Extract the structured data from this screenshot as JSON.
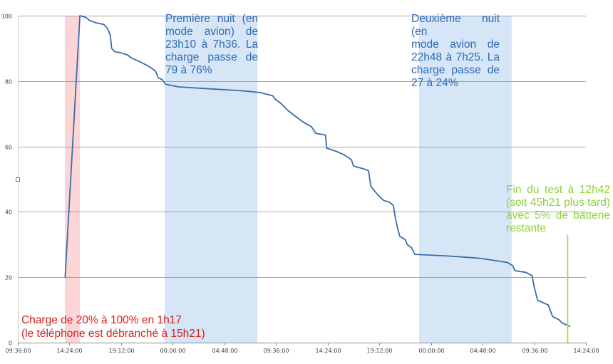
{
  "chart_data": {
    "type": "line",
    "title": "",
    "xlabel": "",
    "ylabel": "",
    "x_unit": "hours",
    "xlim": [
      0,
      52.8
    ],
    "ylim": [
      0,
      100
    ],
    "x_ticks": [
      {
        "x": 0,
        "label": "09:36:00"
      },
      {
        "x": 4.8,
        "label": "14:24:00"
      },
      {
        "x": 9.6,
        "label": "19:12:00"
      },
      {
        "x": 14.4,
        "label": "00:00:00"
      },
      {
        "x": 19.2,
        "label": "04:48:00"
      },
      {
        "x": 24.0,
        "label": "09:36:00"
      },
      {
        "x": 28.8,
        "label": "14:24:00"
      },
      {
        "x": 33.6,
        "label": "19:12:00"
      },
      {
        "x": 38.4,
        "label": "00:00:00"
      },
      {
        "x": 43.2,
        "label": "04:48:00"
      },
      {
        "x": 48.0,
        "label": "09:36:00"
      },
      {
        "x": 52.8,
        "label": "14:24:00"
      }
    ],
    "y_ticks": [
      0,
      20,
      40,
      60,
      80,
      100
    ],
    "grid": true,
    "legend": "none",
    "series": [
      {
        "color": "#3a6da8",
        "points": [
          [
            4.4,
            20
          ],
          [
            5.77,
            100
          ],
          [
            6.3,
            99.5
          ],
          [
            6.7,
            98.5
          ],
          [
            7.3,
            97.8
          ],
          [
            8.0,
            97.3
          ],
          [
            8.35,
            96
          ],
          [
            8.6,
            94
          ],
          [
            8.72,
            90
          ],
          [
            9.0,
            89
          ],
          [
            9.6,
            88.6
          ],
          [
            10.2,
            88
          ],
          [
            10.6,
            87
          ],
          [
            11.3,
            86
          ],
          [
            11.9,
            85
          ],
          [
            12.4,
            84
          ],
          [
            12.8,
            83
          ],
          [
            13.05,
            81
          ],
          [
            13.4,
            80.5
          ],
          [
            13.75,
            79
          ],
          [
            15.0,
            78.2
          ],
          [
            18.0,
            77.6
          ],
          [
            21.0,
            77
          ],
          [
            22.5,
            76.5
          ],
          [
            23.7,
            75.5
          ],
          [
            23.9,
            74.5
          ],
          [
            24.5,
            73
          ],
          [
            25.1,
            71
          ],
          [
            25.7,
            69.5
          ],
          [
            26.5,
            67.5
          ],
          [
            27.3,
            66
          ],
          [
            27.7,
            64
          ],
          [
            28.6,
            63.5
          ],
          [
            28.7,
            59.5
          ],
          [
            29.6,
            58.5
          ],
          [
            30.3,
            57.5
          ],
          [
            31.0,
            56
          ],
          [
            31.2,
            54
          ],
          [
            32.3,
            53
          ],
          [
            32.6,
            52.5
          ],
          [
            32.8,
            48
          ],
          [
            33.0,
            47
          ],
          [
            33.5,
            45
          ],
          [
            34.0,
            43.5
          ],
          [
            34.5,
            43
          ],
          [
            34.9,
            42
          ],
          [
            35.1,
            38
          ],
          [
            35.3,
            35
          ],
          [
            35.5,
            32.5
          ],
          [
            36.0,
            31.5
          ],
          [
            36.2,
            30
          ],
          [
            36.6,
            29
          ],
          [
            36.9,
            27
          ],
          [
            40.0,
            26.5
          ],
          [
            43.0,
            25.8
          ],
          [
            45.5,
            24.5
          ],
          [
            46.0,
            23.5
          ],
          [
            46.2,
            22
          ],
          [
            47.2,
            21.5
          ],
          [
            47.8,
            20.5
          ],
          [
            48.0,
            17
          ],
          [
            48.3,
            13
          ],
          [
            49.3,
            11.5
          ],
          [
            49.7,
            8
          ],
          [
            50.3,
            7
          ],
          [
            50.6,
            6
          ],
          [
            51.3,
            5
          ]
        ]
      }
    ],
    "bands": [
      {
        "x_start": 4.37,
        "x_end": 5.77,
        "color": "#fcd6d6"
      },
      {
        "x_start": 13.67,
        "x_end": 22.27,
        "color": "#d6e6f6"
      },
      {
        "x_start": 37.3,
        "x_end": 45.9,
        "color": "#d6e6f6"
      }
    ],
    "vlines": [
      {
        "x": 51.1,
        "y_top": 33,
        "color": "#a8e05a"
      }
    ],
    "annotations": [
      {
        "lines": [
          "Première nuit (en",
          "mode avion) de",
          "23h10 à 7h36. La",
          "charge passe de",
          "79 à 76%"
        ],
        "color": "#2e6bb8"
      },
      {
        "lines": [
          "Deuxième nuit (en",
          "mode avion de",
          "22h48 à 7h25. La",
          "charge passe de",
          "27 à 24%"
        ],
        "color": "#2e6bb8"
      },
      {
        "lines": [
          "Fin du test à 12h42",
          "(soit 45h21 plus tard)",
          "avec 5% de batterie",
          "restante"
        ],
        "color": "#8ed23a"
      },
      {
        "lines": [
          "Charge de 20% à 100% en 1h17",
          "(le téléphone est débranché à 15h21)"
        ],
        "color": "#d42020"
      }
    ]
  }
}
